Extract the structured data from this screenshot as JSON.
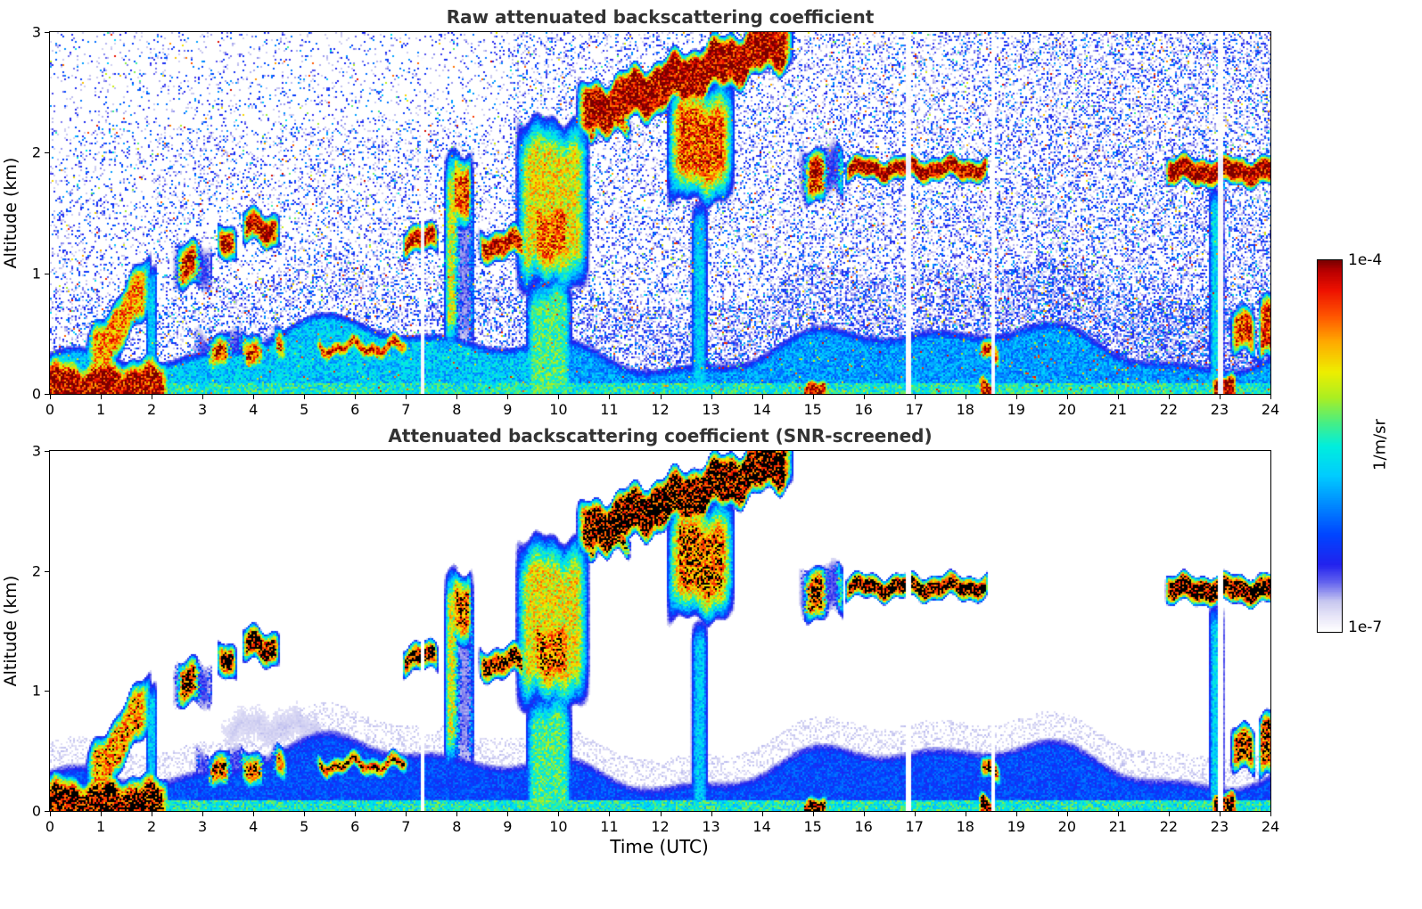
{
  "chart_data": {
    "type": "heatmap",
    "panels": [
      {
        "id": "raw",
        "title": "Raw attenuated backscattering coefficient"
      },
      {
        "id": "screened",
        "title": "Attenuated backscattering coefficient (SNR-screened)"
      }
    ],
    "x": {
      "label": "Time (UTC)",
      "range": [
        0,
        24
      ],
      "ticks": [
        0,
        1,
        2,
        3,
        4,
        5,
        6,
        7,
        8,
        9,
        10,
        11,
        12,
        13,
        14,
        15,
        16,
        17,
        18,
        19,
        20,
        21,
        22,
        23,
        24
      ]
    },
    "y": {
      "label": "Altitude (km)",
      "range": [
        0,
        3
      ],
      "ticks": [
        0,
        1,
        2,
        3
      ]
    },
    "color_scale": {
      "unit": "1/m/sr",
      "max_label": "1e-4",
      "min_label": "1e-7",
      "scale": "log",
      "min": 1e-07,
      "max": 0.0001,
      "colormap_stops": [
        [
          0.0,
          "#ffffff"
        ],
        [
          0.04,
          "#e8e6f8"
        ],
        [
          0.08,
          "#c8c8f0"
        ],
        [
          0.13,
          "#6666ee"
        ],
        [
          0.18,
          "#2222ee"
        ],
        [
          0.26,
          "#0044ff"
        ],
        [
          0.34,
          "#0088ff"
        ],
        [
          0.42,
          "#00ccff"
        ],
        [
          0.5,
          "#00eedd"
        ],
        [
          0.56,
          "#44ee88"
        ],
        [
          0.63,
          "#aaee22"
        ],
        [
          0.7,
          "#eeee00"
        ],
        [
          0.78,
          "#ffaa00"
        ],
        [
          0.85,
          "#ff5500"
        ],
        [
          0.92,
          "#ee1100"
        ],
        [
          0.97,
          "#bb0000"
        ],
        [
          1.0,
          "#7a0000"
        ]
      ]
    },
    "screened_black_threshold": 0.93,
    "screened_min_threshold": 0.045,
    "attenuation_gaps": [
      7.33,
      16.88,
      18.55,
      23.02
    ],
    "boundary_layer": {
      "base": 0.42,
      "waves": [
        [
          0.55,
          0.15,
          4.4
        ],
        [
          1.3,
          0.08,
          0.9
        ],
        [
          2.6,
          0.05,
          0.2
        ]
      ],
      "surface_value": 0.5,
      "body_value_raw": 0.42,
      "body_value_raw_late": 0.36,
      "body_value_screened": 0.26,
      "edge_soft": 0.08,
      "halo_value": 0.055,
      "halo_depth": 0.22
    },
    "noise": {
      "base": 0.17,
      "t_slope": 0.012,
      "alt_falloff": 0.3,
      "bl_boost": 1.6,
      "hot_frac": 0.05
    },
    "features": [
      {
        "name": "surface-aerosol-layer",
        "type": "box",
        "t": [
          -0.3,
          2.35
        ],
        "alt": [
          -0.2,
          0.3
        ],
        "v": 0.97,
        "soft_t": 0.15,
        "soft_a": 0.14
      },
      {
        "name": "rising-plume",
        "type": "slant",
        "t": [
          0.7,
          2.0
        ],
        "alt_start": 0.2,
        "alt_end": 0.95,
        "halfw": 0.14,
        "v": 0.8,
        "soft": 0.12
      },
      {
        "name": "narrow-rain-column-2",
        "type": "box",
        "t": [
          1.88,
          2.12
        ],
        "alt": [
          -0.2,
          1.05
        ],
        "v": 0.42,
        "soft_t": 0.07,
        "soft_a": 0.15
      },
      {
        "name": "cloud-cluster-2.5-3.2",
        "type": "box",
        "t": [
          2.4,
          3.2
        ],
        "alt": [
          0.85,
          1.25
        ],
        "v": 0.94,
        "soft_t": 0.15,
        "soft_a": 0.12,
        "patchy": true
      },
      {
        "name": "cloud-3.4",
        "type": "box",
        "t": [
          3.28,
          3.68
        ],
        "alt": [
          1.08,
          1.38
        ],
        "v": 0.96,
        "soft_t": 0.1,
        "soft_a": 0.1
      },
      {
        "name": "cloud-3.9-4.5",
        "type": "box",
        "t": [
          3.78,
          4.52
        ],
        "alt": [
          1.22,
          1.52
        ],
        "v": 0.97,
        "soft_t": 0.1,
        "soft_a": 0.1
      },
      {
        "name": "low-band-2.9-4.6",
        "type": "box",
        "t": [
          2.85,
          4.68
        ],
        "alt": [
          0.2,
          0.52
        ],
        "v": 0.93,
        "soft_t": 0.15,
        "soft_a": 0.13,
        "patchy": true
      },
      {
        "name": "thin-layer-5.3-7",
        "type": "box",
        "t": [
          5.22,
          7.05
        ],
        "alt": [
          0.3,
          0.47
        ],
        "v": 0.95,
        "soft_t": 0.1,
        "soft_a": 0.08
      },
      {
        "name": "cloud-7-7.6",
        "type": "box",
        "t": [
          6.93,
          7.64
        ],
        "alt": [
          1.15,
          1.4
        ],
        "v": 0.96,
        "soft_t": 0.08,
        "soft_a": 0.09
      },
      {
        "name": "virga-8",
        "type": "box",
        "t": [
          7.75,
          8.36
        ],
        "alt": [
          0.3,
          2.0
        ],
        "v": 0.68,
        "soft_t": 0.1,
        "soft_a": 0.3,
        "patchy": true
      },
      {
        "name": "virga-core-8",
        "type": "box",
        "t": [
          7.9,
          8.3
        ],
        "alt": [
          1.4,
          2.02
        ],
        "v": 0.86,
        "soft_t": 0.08,
        "soft_a": 0.18
      },
      {
        "name": "cloud-8.5-9.3",
        "type": "box",
        "t": [
          8.43,
          9.36
        ],
        "alt": [
          1.1,
          1.37
        ],
        "v": 0.95,
        "soft_t": 0.1,
        "soft_a": 0.09
      },
      {
        "name": "plume-9-10.6",
        "type": "box",
        "t": [
          9.15,
          10.62
        ],
        "alt": [
          0.85,
          2.3
        ],
        "v": 0.7,
        "soft_t": 0.25,
        "soft_a": 0.32
      },
      {
        "name": "plume-core",
        "type": "box",
        "t": [
          9.4,
          10.32
        ],
        "alt": [
          0.92,
          1.75
        ],
        "v": 0.84,
        "soft_t": 0.2,
        "soft_a": 0.28
      },
      {
        "name": "rain-shaft-9.4-10.3",
        "type": "box",
        "t": [
          9.35,
          10.28
        ],
        "alt": [
          -0.2,
          1.0
        ],
        "v": 0.55,
        "soft_t": 0.15,
        "soft_a": 0.25
      },
      {
        "name": "cloud-deck-rising",
        "type": "slant",
        "t": [
          10.35,
          14.62
        ],
        "alt_start": 2.3,
        "alt_end": 2.95,
        "halfw": 0.13,
        "v": 0.985,
        "soft": 0.1,
        "wiggle": 0.05
      },
      {
        "name": "deck-fragments",
        "type": "box",
        "t": [
          10.55,
          11.45
        ],
        "alt": [
          2.12,
          2.32
        ],
        "v": 0.9,
        "soft_t": 0.1,
        "soft_a": 0.07,
        "patchy": true
      },
      {
        "name": "precip-wedge",
        "type": "box",
        "t": [
          12.12,
          13.48
        ],
        "alt": [
          1.58,
          2.6
        ],
        "v": 0.86,
        "soft_t": 0.28,
        "soft_a": 0.3
      },
      {
        "name": "rain-column-12.8",
        "type": "box",
        "t": [
          12.6,
          12.95
        ],
        "alt": [
          -0.2,
          1.62
        ],
        "v": 0.42,
        "soft_t": 0.1,
        "soft_a": 0.2
      },
      {
        "name": "cloud-14.8-15.6",
        "type": "box",
        "t": [
          14.72,
          15.62
        ],
        "alt": [
          1.6,
          2.06
        ],
        "v": 0.92,
        "soft_t": 0.12,
        "soft_a": 0.12,
        "patchy": true
      },
      {
        "name": "cloud-line-15.7-18.4",
        "type": "box",
        "t": [
          15.64,
          18.46
        ],
        "alt": [
          1.76,
          1.97
        ],
        "v": 0.985,
        "soft_t": 0.08,
        "soft_a": 0.07,
        "wiggle": 0.03
      },
      {
        "name": "surface-bit-18.5",
        "type": "box",
        "t": [
          18.28,
          18.7
        ],
        "alt": [
          0.25,
          0.45
        ],
        "v": 0.9,
        "soft_t": 0.08,
        "soft_a": 0.07
      },
      {
        "name": "cloud-line-22-24",
        "type": "box",
        "t": [
          21.93,
          24.4
        ],
        "alt": [
          1.72,
          1.97
        ],
        "v": 0.985,
        "soft_t": 0.08,
        "soft_a": 0.07,
        "wiggle": 0.03
      },
      {
        "name": "rain-column-22.9",
        "type": "box",
        "t": [
          22.78,
          23.1
        ],
        "alt": [
          -0.2,
          1.72
        ],
        "v": 0.44,
        "soft_t": 0.09,
        "soft_a": 0.2
      },
      {
        "name": "low-bits-23.3",
        "type": "box",
        "t": [
          23.22,
          23.72
        ],
        "alt": [
          0.3,
          0.7
        ],
        "v": 0.9,
        "soft_t": 0.1,
        "soft_a": 0.11
      },
      {
        "name": "low-bits-23.9",
        "type": "box",
        "t": [
          23.76,
          24.4
        ],
        "alt": [
          0.25,
          0.8
        ],
        "v": 0.9,
        "soft_t": 0.08,
        "soft_a": 0.12
      },
      {
        "name": "surface-black-14.9",
        "type": "box",
        "t": [
          14.78,
          15.3
        ],
        "alt": [
          -0.2,
          0.1
        ],
        "v": 0.96,
        "soft_t": 0.08,
        "soft_a": 0.06
      },
      {
        "name": "surface-black-18.4",
        "type": "box",
        "t": [
          18.25,
          18.62
        ],
        "alt": [
          -0.2,
          0.12
        ],
        "v": 0.96,
        "soft_t": 0.08,
        "soft_a": 0.06
      },
      {
        "name": "surface-black-23",
        "type": "box",
        "t": [
          22.83,
          23.35
        ],
        "alt": [
          -0.2,
          0.14
        ],
        "v": 0.96,
        "soft_t": 0.08,
        "soft_a": 0.06
      },
      {
        "name": "faint-haze-4-5.5",
        "type": "box",
        "t": [
          3.2,
          5.6
        ],
        "alt": [
          0.45,
          0.95
        ],
        "v": 0.07,
        "soft_t": 0.4,
        "soft_a": 0.25,
        "panels": "screened"
      }
    ]
  }
}
